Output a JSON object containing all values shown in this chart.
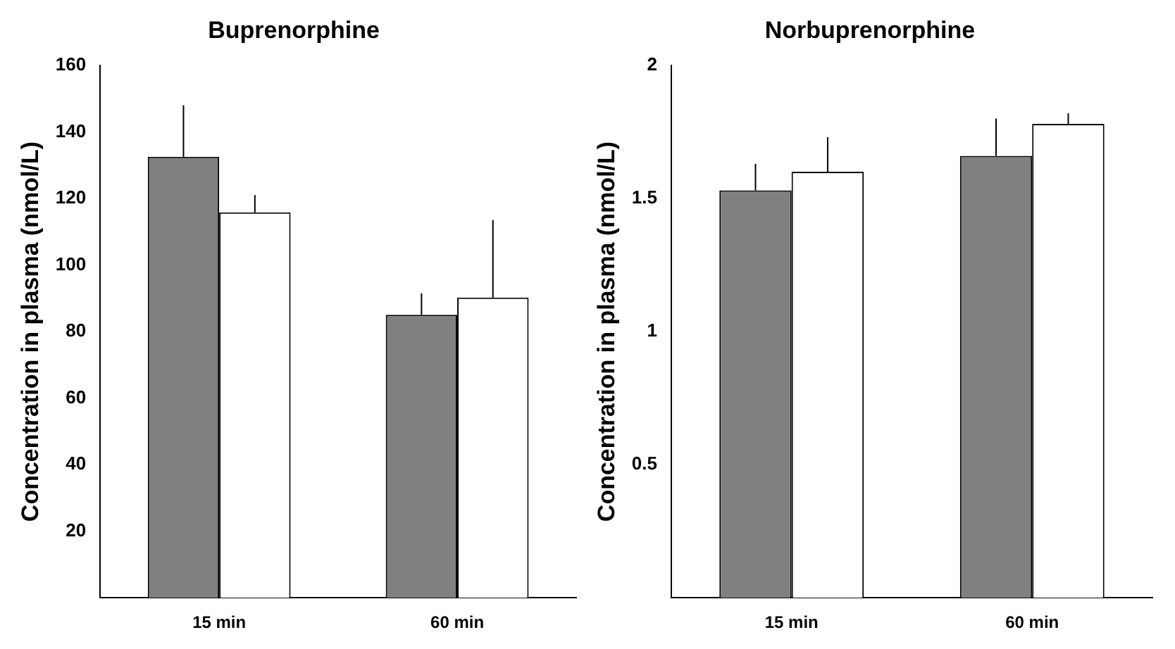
{
  "chart_data": [
    {
      "type": "bar",
      "title": "Buprenorphine",
      "ylabel": "Concentration in plasma (nmol/L)",
      "categories": [
        "15 min",
        "60 min"
      ],
      "series": [
        {
          "color": "#808080",
          "values": [
            132.5,
            85
          ],
          "errors": [
            [
              132.5,
              148
            ],
            [
              85,
              91.5
            ]
          ]
        },
        {
          "color": "#ffffff",
          "values": [
            115.8,
            90.2
          ],
          "errors": [
            [
              115.8,
              121
            ],
            [
              90.2,
              113.5
            ]
          ]
        }
      ],
      "ylim": [
        0,
        160
      ],
      "yticks": [
        20,
        40,
        60,
        80,
        100,
        120,
        140,
        160
      ]
    },
    {
      "type": "bar",
      "title": "Norbuprenorphine",
      "ylabel": "Concentration in plasma (nmol/L)",
      "categories": [
        "15 min",
        "60 min"
      ],
      "series": [
        {
          "color": "#808080",
          "values": [
            1.53,
            1.66
          ],
          "errors": [
            [
              1.53,
              1.63
            ],
            [
              1.66,
              1.8
            ]
          ]
        },
        {
          "color": "#ffffff",
          "values": [
            1.6,
            1.78
          ],
          "errors": [
            [
              1.6,
              1.73
            ],
            [
              1.78,
              1.82
            ]
          ]
        }
      ],
      "ylim": [
        0,
        2
      ],
      "yticks": [
        0.5,
        1,
        1.5,
        2
      ]
    }
  ]
}
